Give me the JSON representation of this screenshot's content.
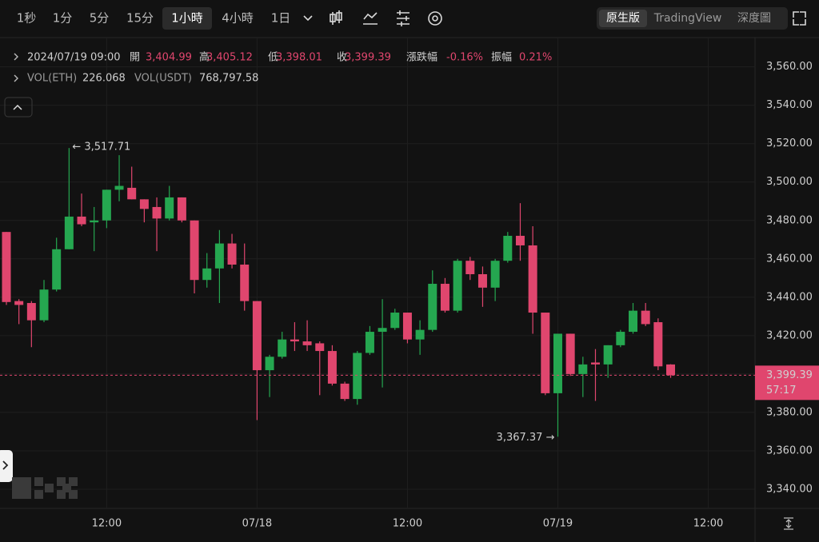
{
  "toolbar": {
    "intervals": [
      "1秒",
      "1分",
      "5分",
      "15分",
      "1小時",
      "4小時",
      "1日"
    ],
    "active_interval": "1小時",
    "views": [
      "原生版",
      "TradingView",
      "深度圖"
    ],
    "active_view": "原生版"
  },
  "info": {
    "time": "2024/07/19 09:00",
    "ohlc": [
      {
        "label": "開",
        "value": "3,404.99"
      },
      {
        "label": "高",
        "value": "3,405.12"
      },
      {
        "label": "低",
        "value": "3,398.01"
      },
      {
        "label": "收",
        "value": "3,399.39"
      },
      {
        "label": "漲跌幅",
        "value": "-0.16%"
      },
      {
        "label": "振幅",
        "value": "0.21%"
      }
    ],
    "volume": [
      {
        "label": "VOL(ETH)",
        "value": "226.068"
      },
      {
        "label": "VOL(USDT)",
        "value": "768,797.58"
      }
    ]
  },
  "chart_data": {
    "type": "candlestick",
    "up_color": "#25a750",
    "down_color": "#e0466e",
    "grid": true,
    "categories": [
      null,
      null,
      null,
      null,
      null,
      null,
      null,
      null,
      "12:00",
      null,
      null,
      null,
      null,
      null,
      null,
      null,
      null,
      null,
      null,
      null,
      "07/18",
      null,
      null,
      null,
      null,
      null,
      null,
      null,
      null,
      null,
      null,
      null,
      "12:00",
      null,
      null,
      null,
      null,
      null,
      null,
      null,
      null,
      null,
      null,
      null,
      "07/19",
      null,
      null,
      null,
      null,
      null,
      null,
      null,
      null,
      null,
      null,
      null,
      "12:00",
      null,
      null,
      null
    ],
    "open": [
      3474,
      3438,
      3437,
      3428,
      3444,
      3465,
      3482,
      3479,
      3480,
      3496,
      3497,
      3491,
      3487,
      3481,
      3492,
      3480,
      3449,
      3455,
      3468,
      3457,
      3438,
      3402,
      3409,
      3418,
      3417,
      3416,
      3412,
      3395,
      3387,
      3411,
      3422,
      3424,
      3432,
      3418,
      3423,
      3447,
      3433,
      3459,
      3452,
      3445,
      3459,
      3472,
      3467,
      3432,
      3390,
      3421,
      3400,
      3406,
      3405,
      3415,
      3422,
      3433,
      3427,
      3404.99,
      null,
      null,
      null,
      null,
      null,
      null
    ],
    "high": [
      3474,
      3439,
      3438,
      3449,
      3471,
      3517.71,
      3494,
      3487,
      3496,
      3514,
      3508,
      3491,
      3492,
      3498,
      3492,
      3480,
      3463,
      3475,
      3473,
      3468,
      3438,
      3410,
      3422,
      3427,
      3428,
      3417,
      3415,
      3396,
      3412,
      3425,
      3439,
      3434,
      3432,
      3428,
      3454,
      3450,
      3460,
      3461,
      3456,
      3460,
      3474,
      3489,
      3477,
      3432,
      3421,
      3421,
      3409,
      3413,
      3415,
      3423,
      3437,
      3437,
      3429,
      3405.12,
      null,
      null,
      null,
      null,
      null,
      null
    ],
    "low": [
      3436,
      3426,
      3414,
      3427,
      3443,
      3465,
      3477,
      3464,
      3476,
      3490,
      3491,
      3479,
      3464,
      3480,
      3479,
      3442,
      3445,
      3437,
      3455,
      3433,
      3376,
      3388,
      3408,
      3412,
      3412,
      3389,
      3394,
      3386,
      3384,
      3410,
      3393,
      3423,
      3416,
      3410,
      3422,
      3432,
      3432,
      3449,
      3435,
      3438,
      3458,
      3459,
      3421,
      3389,
      3367.37,
      3399,
      3388,
      3386,
      3398,
      3414,
      3421,
      3425,
      3402,
      3398.01,
      null,
      null,
      null,
      null,
      null,
      null
    ],
    "close": [
      3437.5,
      3436,
      3428,
      3444,
      3465,
      3482,
      3478,
      3480,
      3496,
      3498,
      3491,
      3486,
      3481,
      3492,
      3480,
      3449,
      3455,
      3468,
      3457,
      3438,
      3402,
      3409,
      3418,
      3417,
      3415,
      3412,
      3395,
      3387,
      3411,
      3422,
      3424,
      3432,
      3418,
      3423,
      3447,
      3433,
      3459,
      3452,
      3445,
      3459,
      3472,
      3467,
      3432,
      3390,
      3421,
      3400,
      3405,
      3405,
      3415,
      3422,
      3433,
      3426,
      3404,
      3399.39,
      null,
      null,
      null,
      null,
      null,
      null
    ],
    "max_label": "← 3,517.71",
    "min_label": "3,367.37 →",
    "last_price": {
      "value": 3399.39,
      "label": "3,399.39"
    },
    "countdown": "57:17",
    "ylim": [
      3330,
      3574
    ],
    "yticks": [
      {
        "value": 3340,
        "label": "3,340.00"
      },
      {
        "value": 3360,
        "label": "3,360.00"
      },
      {
        "value": 3380,
        "label": "3,380.00"
      },
      {
        "value": 3400,
        "label": "3,400.00"
      },
      {
        "value": 3420,
        "label": "3,420.00"
      },
      {
        "value": 3440,
        "label": "3,440.00"
      },
      {
        "value": 3460,
        "label": "3,460.00"
      },
      {
        "value": 3480,
        "label": "3,480.00"
      },
      {
        "value": 3500,
        "label": "3,500.00"
      },
      {
        "value": 3520,
        "label": "3,520.00"
      },
      {
        "value": 3540,
        "label": "3,540.00"
      },
      {
        "value": 3560,
        "label": "3,560.00"
      }
    ]
  }
}
